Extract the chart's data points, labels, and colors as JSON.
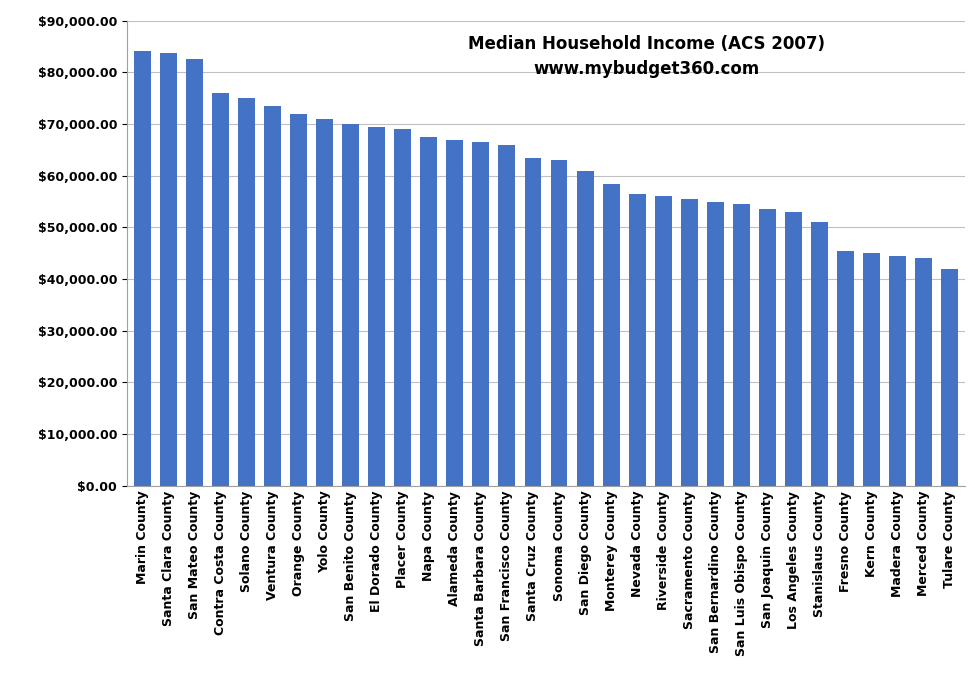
{
  "title_line1": "Median Household Income (ACS 2007)",
  "title_line2": "www.mybudget360.com",
  "categories": [
    "Marin County",
    "Santa Clara County",
    "San Mateo County",
    "Contra Costa County",
    "Solano County",
    "Ventura County",
    "Orange County",
    "Yolo County",
    "San Benito County",
    "El Dorado County",
    "Placer County",
    "Napa County",
    "Alameda County",
    "Santa Barbara County",
    "San Francisco County",
    "Santa Cruz County",
    "Sonoma County",
    "San Diego County",
    "Monterey County",
    "Nevada County",
    "Riverside County",
    "Sacramento County",
    "San Bernardino County",
    "San Luis Obispo County",
    "San Joaquin County",
    "Los Angeles County",
    "Stanislaus County",
    "Fresno County",
    "Kern County",
    "Madera County",
    "Merced County",
    "Tulare County"
  ],
  "values": [
    84200,
    83800,
    82700,
    76000,
    75000,
    73500,
    72000,
    71000,
    70000,
    69500,
    69000,
    67500,
    67000,
    66500,
    66000,
    63500,
    63000,
    61000,
    58500,
    56500,
    56000,
    55500,
    55000,
    54500,
    53500,
    53000,
    51000,
    45500,
    45000,
    44500,
    44000,
    42000
  ],
  "bar_color": "#4472C4",
  "ylim": [
    0,
    90000
  ],
  "ytick_step": 10000,
  "background_color": "#FFFFFF",
  "grid_color": "#C0C0C0",
  "title_fontsize": 12,
  "tick_label_fontsize": 9,
  "bar_width": 0.65
}
